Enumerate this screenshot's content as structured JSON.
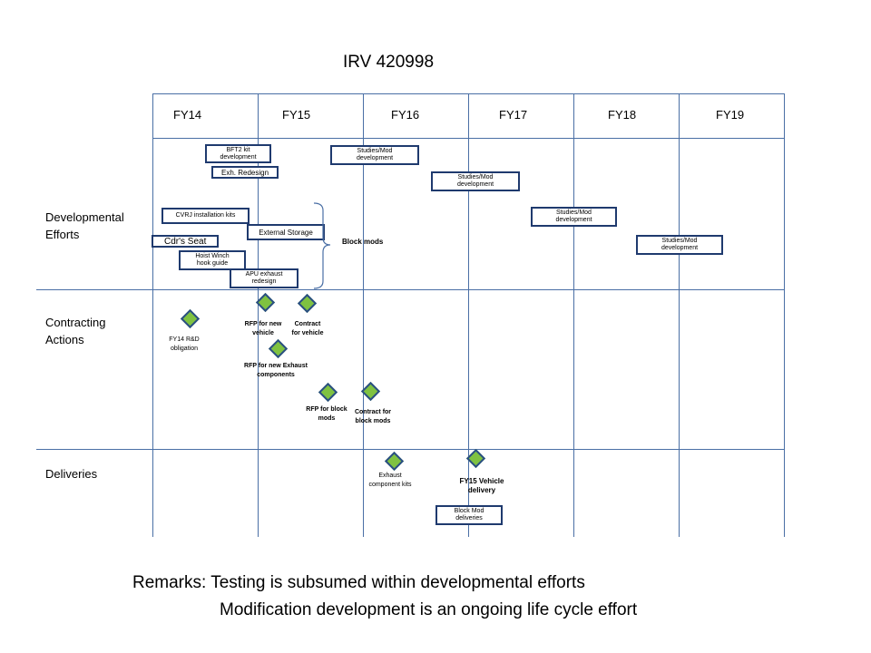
{
  "title": "IRV 420998",
  "fiscal_years": [
    "FY14",
    "FY15",
    "FY16",
    "FY17",
    "FY18",
    "FY19"
  ],
  "rows": {
    "developmental": "Developmental\nEfforts",
    "contracting": "Contracting\nActions",
    "deliveries": "Deliveries"
  },
  "tasks": {
    "bfts_kit": "BFT2 kit\ndevelopment",
    "exh_redesign": "Exh. Redesign",
    "cvrj": "CVRJ installation kits",
    "external_storage": "External  Storage",
    "cdrs_seat": "Cdr's Seat",
    "hoist_winch": "Hoist Winch\nhook guide",
    "apu_exhaust": "APU exhaust\nredesign",
    "studies_fy16": "Studies/Mod\ndevelopment",
    "studies_fy17": "Studies/Mod\ndevelopment",
    "studies_fy18": "Studies/Mod\ndevelopment",
    "studies_fy19": "Studies/Mod\ndevelopment",
    "block_mod_deliveries": "Block Mod\ndeliveries"
  },
  "block_mods": "Block mods",
  "milestones": {
    "fy14_rd": "FY14 R&D\nobligation",
    "rfp_new_vehicle": "RFP for new\nvehicle",
    "contract_vehicle": "Contract\nfor vehicle",
    "rfp_exhaust": "RFP for new Exhaust\ncomponents",
    "rfp_block": "RFP for block\nmods",
    "contract_block": "Contract for\nblock mods",
    "exhaust_kits": "Exhaust\ncomponent  kits",
    "fy15_delivery": "FY15 Vehicle\ndelivery"
  },
  "remarks": {
    "line1": "Remarks: Testing is subsumed within developmental efforts",
    "line2": "Modification development is an ongoing life cycle effort"
  },
  "colors": {
    "grid": "#4a6fa5",
    "box_border": "#1f3a6e",
    "milestone_fill": "#7fc241"
  }
}
